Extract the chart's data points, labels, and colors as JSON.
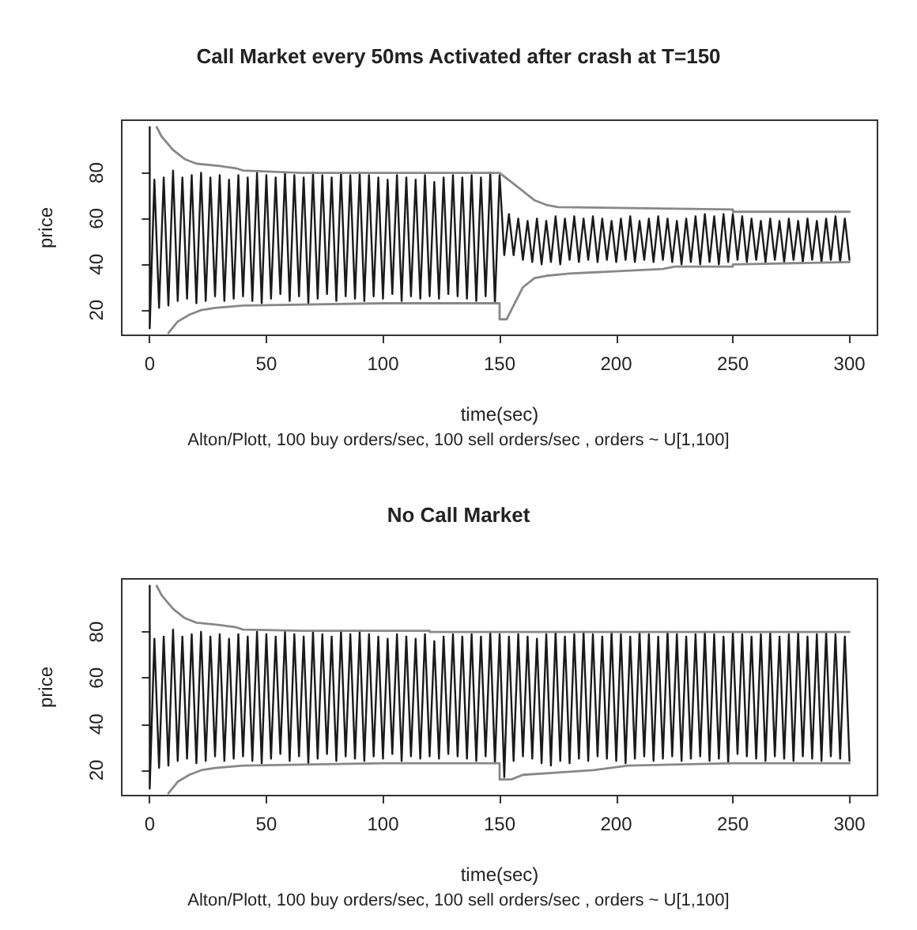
{
  "chart_data": [
    {
      "type": "line",
      "title": "Call Market every 50ms Activated after crash at T=150",
      "xlabel": "time(sec)",
      "ylabel": "price",
      "annotations": [
        "Alton/Plott, 100 buy orders/sec, 100 sell orders/sec , orders ~ U[1,100]"
      ],
      "xlim": [
        -12,
        312
      ],
      "xticks": [
        0,
        50,
        100,
        150,
        200,
        250,
        300
      ],
      "ylim": [
        9,
        103
      ],
      "yticks": [
        20,
        40,
        60,
        80
      ],
      "grid": false,
      "marker": "none",
      "line_style": "solid",
      "series": [
        {
          "color": "#1a1a1a",
          "x": [
            0,
            0,
            2,
            4,
            6,
            8,
            10,
            12,
            14,
            16,
            18,
            20,
            22,
            24,
            26,
            28,
            30,
            32,
            34,
            36,
            38,
            40,
            42,
            44,
            46,
            48,
            50,
            52,
            54,
            56,
            58,
            60,
            62,
            64,
            66,
            68,
            70,
            72,
            74,
            76,
            78,
            80,
            82,
            84,
            86,
            88,
            90,
            92,
            94,
            96,
            98,
            100,
            102,
            104,
            106,
            108,
            110,
            112,
            114,
            116,
            118,
            120,
            122,
            124,
            126,
            128,
            130,
            132,
            134,
            136,
            138,
            140,
            142,
            144,
            146,
            148,
            150,
            152,
            154,
            156,
            158,
            160,
            162,
            164,
            166,
            168,
            170,
            172,
            174,
            176,
            178,
            180,
            182,
            184,
            186,
            188,
            190,
            192,
            194,
            196,
            198,
            200,
            202,
            204,
            206,
            208,
            210,
            212,
            214,
            216,
            218,
            220,
            222,
            224,
            226,
            228,
            230,
            232,
            234,
            236,
            238,
            240,
            242,
            244,
            246,
            248,
            250,
            252,
            254,
            256,
            258,
            260,
            262,
            264,
            266,
            268,
            270,
            272,
            274,
            276,
            278,
            280,
            282,
            284,
            286,
            288,
            290,
            292,
            294,
            296,
            298,
            300
          ],
          "values": [
            100,
            12,
            77,
            21,
            78,
            22,
            81,
            24,
            78,
            25,
            79,
            23,
            80,
            24,
            78,
            26,
            79,
            24,
            77,
            25,
            79,
            26,
            78,
            24,
            80,
            23,
            79,
            25,
            78,
            27,
            80,
            24,
            79,
            26,
            78,
            23,
            80,
            25,
            79,
            27,
            78,
            24,
            80,
            26,
            79,
            25,
            80,
            24,
            79,
            26,
            78,
            25,
            77,
            27,
            79,
            24,
            78,
            26,
            77,
            25,
            79,
            26,
            76,
            25,
            78,
            27,
            79,
            26,
            78,
            25,
            79,
            24,
            78,
            26,
            80,
            23,
            79,
            44,
            62,
            44,
            60,
            42,
            59,
            41,
            60,
            40,
            59,
            41,
            61,
            40,
            60,
            42,
            61,
            41,
            60,
            42,
            61,
            41,
            60,
            42,
            59,
            41,
            60,
            42,
            61,
            41,
            59,
            42,
            60,
            41,
            61,
            42,
            60,
            41,
            59,
            40,
            60,
            41,
            61,
            40,
            62,
            41,
            61,
            40,
            62,
            41,
            62,
            42,
            61,
            41,
            60,
            42,
            59,
            41,
            60,
            42,
            59,
            41,
            60,
            42,
            59,
            41,
            60,
            42,
            59,
            41,
            60,
            42,
            61,
            41,
            60,
            42
          ]
        },
        {
          "color": "#888888",
          "x": [
            3,
            5,
            10,
            15,
            20,
            30,
            37,
            40,
            65,
            150,
            155,
            160,
            165,
            170,
            175,
            250,
            250,
            300
          ],
          "values": [
            100,
            96,
            90,
            86,
            84,
            83,
            82,
            81,
            80,
            80,
            76,
            72,
            68,
            66,
            65,
            64,
            63,
            63
          ]
        },
        {
          "color": "#888888",
          "x": [
            8,
            12,
            17,
            22,
            28,
            40,
            100,
            150,
            150,
            153,
            155,
            160,
            165,
            170,
            180,
            220,
            225,
            250,
            250,
            300
          ],
          "values": [
            10,
            15,
            18,
            20,
            21,
            22,
            23,
            23,
            16,
            16,
            20,
            30,
            34,
            35,
            36,
            38,
            39,
            39,
            40,
            41
          ]
        }
      ]
    },
    {
      "type": "line",
      "title": "No Call Market",
      "xlabel": "time(sec)",
      "ylabel": "price",
      "annotations": [
        "Alton/Plott, 100 buy orders/sec, 100 sell orders/sec , orders ~ U[1,100]"
      ],
      "xlim": [
        -12,
        312
      ],
      "xticks": [
        0,
        50,
        100,
        150,
        200,
        250,
        300
      ],
      "ylim": [
        9,
        103
      ],
      "yticks": [
        20,
        40,
        60,
        80
      ],
      "grid": false,
      "marker": "none",
      "line_style": "solid",
      "series": [
        {
          "color": "#1a1a1a",
          "x": [
            0,
            0,
            2,
            4,
            6,
            8,
            10,
            12,
            14,
            16,
            18,
            20,
            22,
            24,
            26,
            28,
            30,
            32,
            34,
            36,
            38,
            40,
            42,
            44,
            46,
            48,
            50,
            52,
            54,
            56,
            58,
            60,
            62,
            64,
            66,
            68,
            70,
            72,
            74,
            76,
            78,
            80,
            82,
            84,
            86,
            88,
            90,
            92,
            94,
            96,
            98,
            100,
            102,
            104,
            106,
            108,
            110,
            112,
            114,
            116,
            118,
            120,
            122,
            124,
            126,
            128,
            130,
            132,
            134,
            136,
            138,
            140,
            142,
            144,
            146,
            148,
            150,
            152,
            154,
            156,
            158,
            160,
            162,
            164,
            166,
            168,
            170,
            172,
            174,
            176,
            178,
            180,
            182,
            184,
            186,
            188,
            190,
            192,
            194,
            196,
            198,
            200,
            202,
            204,
            206,
            208,
            210,
            212,
            214,
            216,
            218,
            220,
            222,
            224,
            226,
            228,
            230,
            232,
            234,
            236,
            238,
            240,
            242,
            244,
            246,
            248,
            250,
            252,
            254,
            256,
            258,
            260,
            262,
            264,
            266,
            268,
            270,
            272,
            274,
            276,
            278,
            280,
            282,
            284,
            286,
            288,
            290,
            292,
            294,
            296,
            298,
            300
          ],
          "values": [
            100,
            12,
            77,
            21,
            78,
            22,
            81,
            24,
            78,
            25,
            79,
            23,
            80,
            24,
            78,
            26,
            79,
            24,
            77,
            25,
            79,
            26,
            78,
            24,
            80,
            23,
            79,
            25,
            78,
            27,
            80,
            24,
            79,
            26,
            78,
            23,
            80,
            25,
            79,
            27,
            78,
            24,
            80,
            26,
            79,
            25,
            80,
            24,
            79,
            26,
            78,
            25,
            77,
            27,
            79,
            24,
            78,
            26,
            77,
            25,
            79,
            26,
            76,
            25,
            78,
            27,
            79,
            26,
            78,
            25,
            79,
            24,
            78,
            26,
            80,
            23,
            79,
            17,
            78,
            24,
            79,
            26,
            78,
            25,
            77,
            23,
            79,
            22,
            80,
            24,
            78,
            23,
            79,
            25,
            80,
            24,
            79,
            26,
            78,
            25,
            80,
            24,
            79,
            23,
            78,
            25,
            80,
            26,
            79,
            24,
            78,
            25,
            80,
            26,
            79,
            24,
            78,
            25,
            79,
            26,
            80,
            24,
            79,
            25,
            78,
            23,
            80,
            27,
            79,
            26,
            78,
            25,
            79,
            24,
            80,
            26,
            78,
            25,
            79,
            24,
            80,
            26,
            78,
            25,
            79,
            24,
            80,
            26,
            79,
            25,
            78,
            24
          ]
        },
        {
          "color": "#888888",
          "x": [
            3,
            5,
            10,
            15,
            20,
            30,
            37,
            40,
            65,
            120,
            120,
            300
          ],
          "values": [
            100,
            96,
            90,
            86,
            84,
            83,
            82,
            81,
            80.5,
            80.5,
            80,
            80
          ]
        },
        {
          "color": "#888888",
          "x": [
            8,
            12,
            17,
            22,
            28,
            40,
            100,
            150,
            150,
            155,
            160,
            175,
            190,
            205,
            250,
            300
          ],
          "values": [
            10,
            15,
            18,
            20,
            21,
            22,
            23,
            23,
            16,
            16,
            18,
            19,
            20,
            22,
            23,
            23
          ]
        }
      ]
    }
  ]
}
